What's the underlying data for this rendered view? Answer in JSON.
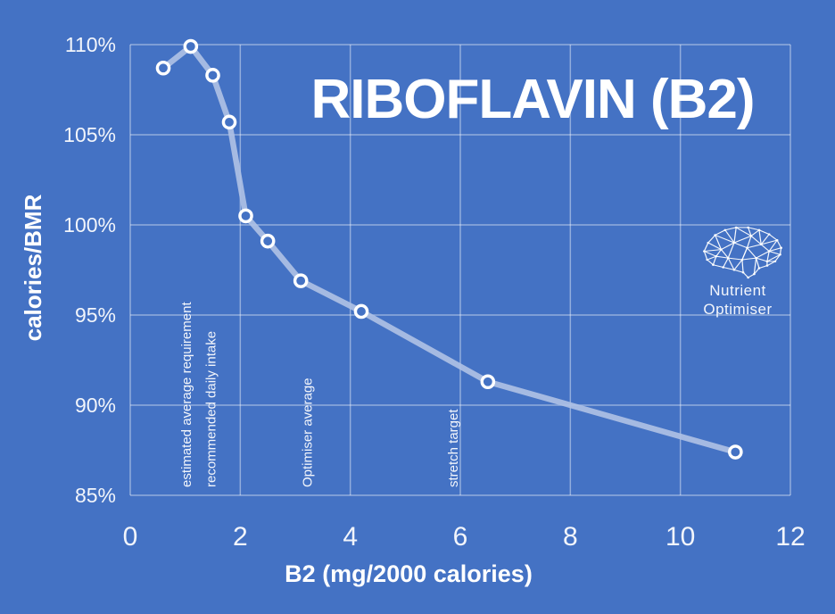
{
  "colors": {
    "background": "#4472C4",
    "grid": "#FFFFFF",
    "line": "#AEC0E4",
    "marker_ring": "#FFFFFF",
    "marker_fill": "#4472C4",
    "text": "#FFFFFF"
  },
  "chart_data": {
    "type": "line",
    "title": "RIBOFLAVIN (B2)",
    "xlabel": "B2 (mg/2000 calories)",
    "ylabel": "calories/BMR",
    "xlim": [
      0,
      12
    ],
    "ylim": [
      85,
      110
    ],
    "xticks": [
      0,
      2,
      4,
      6,
      8,
      10,
      12
    ],
    "yticks": [
      85,
      90,
      95,
      100,
      105,
      110
    ],
    "ytick_suffix": "%",
    "grid": true,
    "legend_position": "none",
    "series": [
      {
        "name": "calories/BMR",
        "x": [
          0.6,
          1.1,
          1.5,
          1.8,
          2.1,
          2.5,
          3.1,
          4.2,
          6.5,
          11.0
        ],
        "y": [
          108.7,
          109.9,
          108.3,
          105.7,
          100.5,
          99.1,
          96.9,
          95.2,
          91.3,
          87.4
        ]
      }
    ],
    "annotations": [
      {
        "label": "estimated average requirement",
        "x": 1.1
      },
      {
        "label": "recommended daily intake",
        "x": 1.55
      },
      {
        "label": "Optimiser average",
        "x": 3.3
      },
      {
        "label": "stretch target",
        "x": 5.95
      }
    ]
  },
  "logo": {
    "icon": "brain-network-icon",
    "line1": "Nutrient",
    "line2": "Optimiser"
  }
}
